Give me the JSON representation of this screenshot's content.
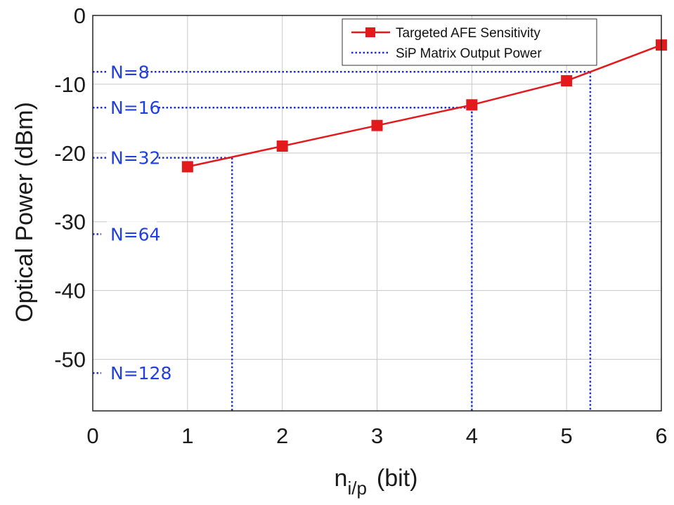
{
  "chart_data": {
    "type": "line",
    "xlabel": "n",
    "xlabel_subscript": "i/p",
    "xlabel_unit": "(bit)",
    "ylabel": "Optical Power (dBm)",
    "xlim": [
      0,
      6
    ],
    "ylim": [
      -57.5,
      0
    ],
    "xticks": [
      "0",
      "1",
      "2",
      "3",
      "4",
      "5",
      "6"
    ],
    "yticks": [
      "0",
      "-10",
      "-20",
      "-30",
      "-40",
      "-50"
    ],
    "grid": true,
    "legend_position": "top-right",
    "series": [
      {
        "name": "Targeted AFE Sensitivity",
        "color": "#e31a1c",
        "marker": "square",
        "x": [
          1,
          2,
          3,
          4,
          5,
          6
        ],
        "y": [
          -22,
          -19,
          -16,
          -13,
          -9.5,
          -4.3
        ]
      },
      {
        "name": "SiP Matrix Output Power",
        "color": "#1c2ed4",
        "style": "dotted",
        "levels": [
          {
            "label": "N=8",
            "y": -8.2,
            "x_cross": 5.25
          },
          {
            "label": "N=16",
            "y": -13.4,
            "x_cross": 4.0
          },
          {
            "label": "N=32",
            "y": -20.7,
            "x_cross": 1.47
          },
          {
            "label": "N=64",
            "y": -31.8,
            "x_cross": null
          },
          {
            "label": "N=128",
            "y": -52.0,
            "x_cross": null
          }
        ]
      }
    ]
  }
}
